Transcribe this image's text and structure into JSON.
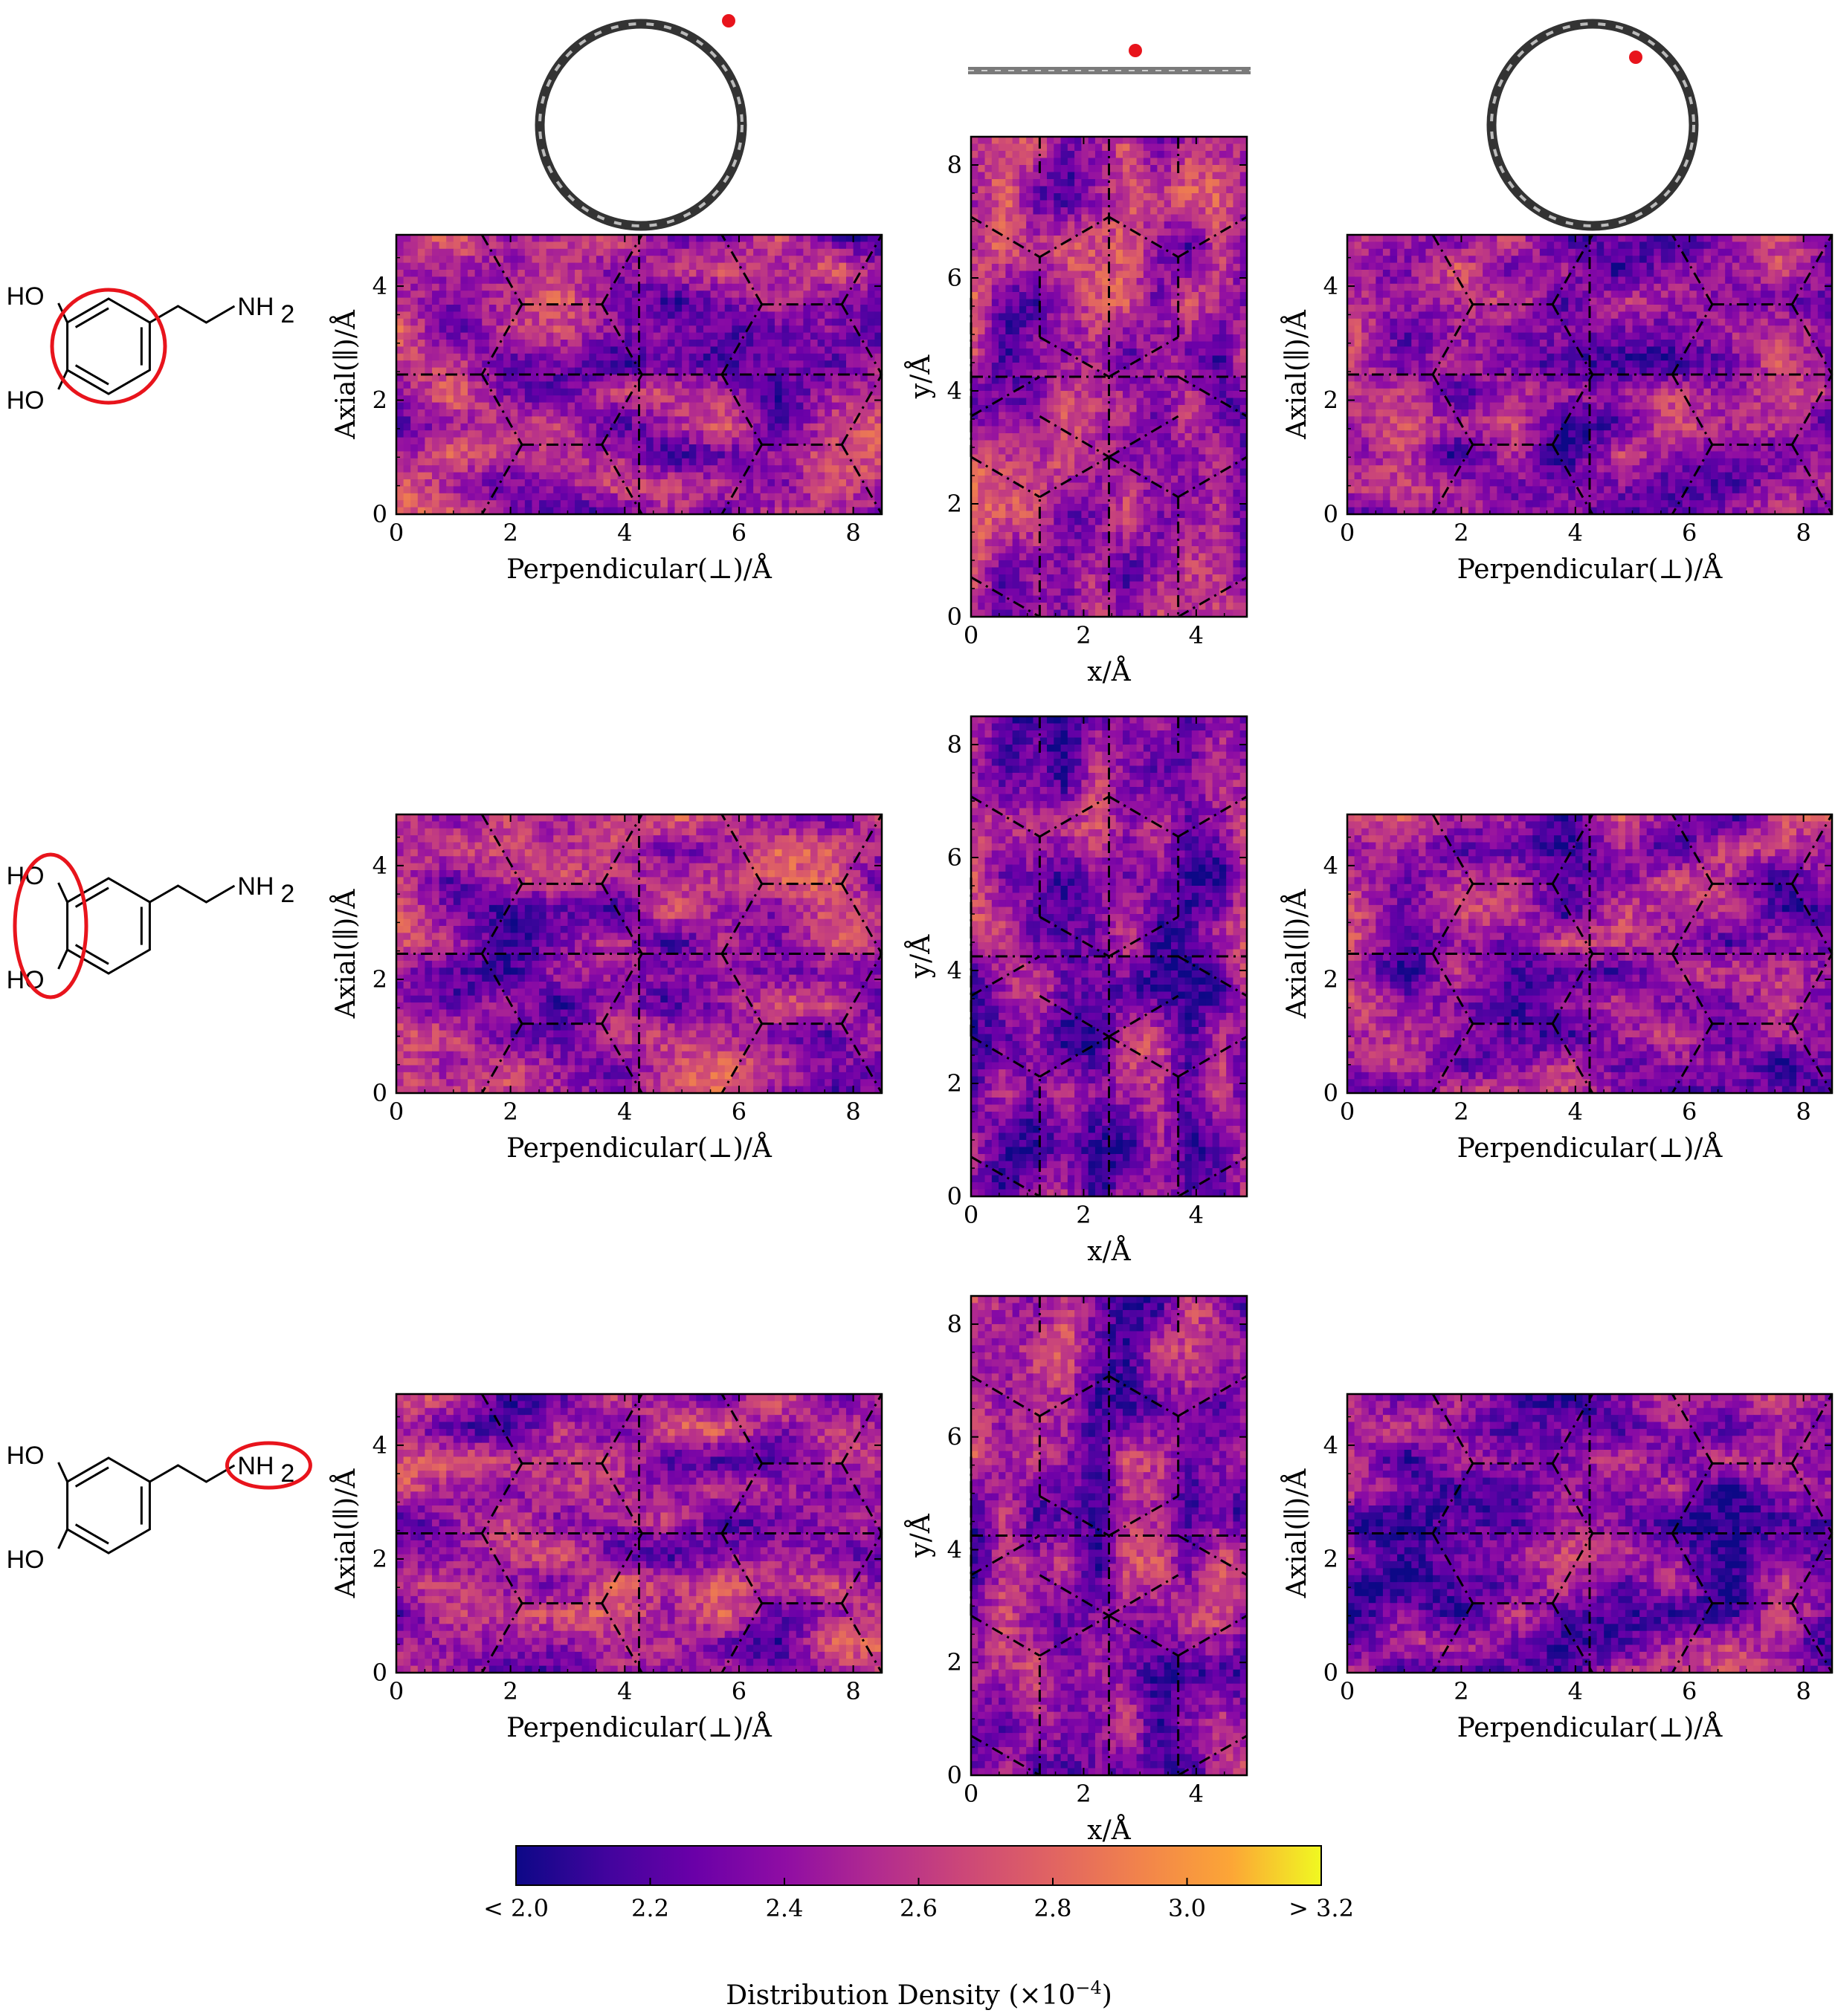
{
  "molecule_labels": {
    "ho": "HO",
    "nh": "NH",
    "nh_sub": "2"
  },
  "axis_labels": {
    "perpendicular": "Perpendicular(⊥)/Å",
    "axial": "Axial(∥)/Å",
    "x": "x/Å",
    "y": "y/Å"
  },
  "colorbar": {
    "label": "Distribution Density (×10",
    "label_exponent": "−4",
    "label_close": ")",
    "tick_labels": [
      "< 2.0",
      "2.2",
      "2.4",
      "2.6",
      "2.8",
      "3.0",
      "> 3.2"
    ],
    "ticks": [
      2.0,
      2.2,
      2.4,
      2.6,
      2.8,
      3.0,
      3.2
    ],
    "range": [
      2.0,
      3.2
    ],
    "colormap": "plasma"
  },
  "colors": {
    "highlight": "#e8141c",
    "ring": "#333333",
    "sheet": "#7a7a7a"
  },
  "chart_data": [
    {
      "type": "heatmap",
      "row": 1,
      "panel": "tube-left",
      "xlabel": "Perpendicular(⊥)/Å",
      "ylabel": "Axial(∥)/Å",
      "xlim": [
        0,
        8.5
      ],
      "ylim": [
        0,
        4.9
      ],
      "xticks": [
        0,
        2,
        4,
        6,
        8
      ],
      "yticks": [
        0,
        2,
        4
      ],
      "mean_density": 2.45
    },
    {
      "type": "heatmap",
      "row": 1,
      "panel": "sheet",
      "xlabel": "x/Å",
      "ylabel": "y/Å",
      "xlim": [
        0,
        4.9
      ],
      "ylim": [
        0,
        8.5
      ],
      "xticks": [
        0,
        2,
        4
      ],
      "yticks": [
        0,
        2,
        4,
        6,
        8
      ],
      "mean_density": 2.45
    },
    {
      "type": "heatmap",
      "row": 1,
      "panel": "tube-right",
      "xlabel": "Perpendicular(⊥)/Å",
      "ylabel": "Axial(∥)/Å",
      "xlim": [
        0,
        8.5
      ],
      "ylim": [
        0,
        4.9
      ],
      "xticks": [
        0,
        2,
        4,
        6,
        8
      ],
      "yticks": [
        0,
        2,
        4
      ],
      "mean_density": 2.4
    },
    {
      "type": "heatmap",
      "row": 2,
      "panel": "tube-left",
      "xlabel": "Perpendicular(⊥)/Å",
      "ylabel": "Axial(∥)/Å",
      "xlim": [
        0,
        8.5
      ],
      "ylim": [
        0,
        4.9
      ],
      "xticks": [
        0,
        2,
        4,
        6,
        8
      ],
      "yticks": [
        0,
        2,
        4
      ],
      "mean_density": 2.45
    },
    {
      "type": "heatmap",
      "row": 2,
      "panel": "sheet",
      "xlabel": "x/Å",
      "ylabel": "y/Å",
      "xlim": [
        0,
        4.9
      ],
      "ylim": [
        0,
        8.5
      ],
      "xticks": [
        0,
        2,
        4
      ],
      "yticks": [
        0,
        2,
        4,
        6,
        8
      ],
      "mean_density": 2.38
    },
    {
      "type": "heatmap",
      "row": 2,
      "panel": "tube-right",
      "xlabel": "Perpendicular(⊥)/Å",
      "ylabel": "Axial(∥)/Å",
      "xlim": [
        0,
        8.5
      ],
      "ylim": [
        0,
        4.9
      ],
      "xticks": [
        0,
        2,
        4,
        6,
        8
      ],
      "yticks": [
        0,
        2,
        4
      ],
      "mean_density": 2.38
    },
    {
      "type": "heatmap",
      "row": 3,
      "panel": "tube-left",
      "xlabel": "Perpendicular(⊥)/Å",
      "ylabel": "Axial(∥)/Å",
      "xlim": [
        0,
        8.5
      ],
      "ylim": [
        0,
        4.9
      ],
      "xticks": [
        0,
        2,
        4,
        6,
        8
      ],
      "yticks": [
        0,
        2,
        4
      ],
      "mean_density": 2.45
    },
    {
      "type": "heatmap",
      "row": 3,
      "panel": "sheet",
      "xlabel": "x/Å",
      "ylabel": "y/Å",
      "xlim": [
        0,
        4.9
      ],
      "ylim": [
        0,
        8.5
      ],
      "xticks": [
        0,
        2,
        4
      ],
      "yticks": [
        0,
        2,
        4,
        6,
        8
      ],
      "mean_density": 2.4
    },
    {
      "type": "heatmap",
      "row": 3,
      "panel": "tube-right",
      "xlabel": "Perpendicular(⊥)/Å",
      "ylabel": "Axial(∥)/Å",
      "xlim": [
        0,
        8.5
      ],
      "ylim": [
        0,
        4.9
      ],
      "xticks": [
        0,
        2,
        4,
        6,
        8
      ],
      "yticks": [
        0,
        2,
        4
      ],
      "mean_density": 2.32
    }
  ]
}
